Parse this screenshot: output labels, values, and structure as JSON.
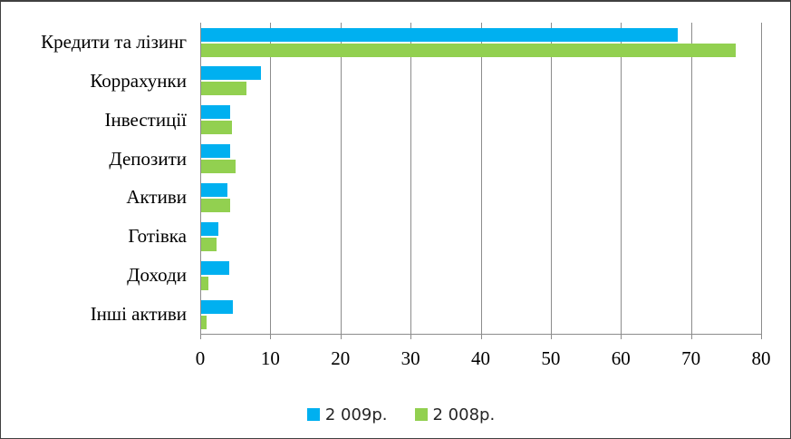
{
  "chart_data": {
    "type": "bar",
    "orientation": "horizontal",
    "title": "",
    "categories": [
      "Кредити та лізинг",
      "Коррахунки",
      "Інвестиції",
      "Депозити",
      "Активи",
      "Готівка",
      "Доходи",
      "Інші активи"
    ],
    "series": [
      {
        "name": "2 009р.",
        "color": "#00B0F0",
        "values": [
          68,
          8.5,
          4.1,
          4.2,
          3.8,
          2.5,
          4.0,
          4.5
        ]
      },
      {
        "name": "2 008р.",
        "color": "#92D050",
        "values": [
          76.3,
          6.5,
          4.4,
          4.9,
          4.1,
          2.2,
          1.0,
          0.8
        ]
      }
    ],
    "x_axis": {
      "min": 0,
      "max": 80,
      "step": 10,
      "tick_labels": [
        "0",
        "10",
        "20",
        "30",
        "40",
        "50",
        "60",
        "70",
        "80"
      ]
    },
    "grid": true,
    "legend_position": "bottom"
  },
  "colors": {
    "gridline": "#8c8c8c",
    "frame_border": "#404040",
    "axis_text": "#000000",
    "legend_text": "#262626",
    "background": "#ffffff"
  }
}
